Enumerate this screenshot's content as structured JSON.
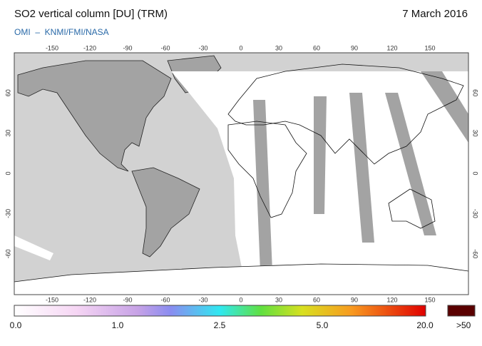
{
  "header": {
    "title": "SO2 vertical column [DU] (TRM)",
    "source": "OMI  –  KNMI/FMI/NASA",
    "date": "7 March 2016"
  },
  "map": {
    "lon_ticks": [
      -150,
      -120,
      -90,
      -60,
      -30,
      0,
      30,
      60,
      90,
      120,
      150
    ],
    "lat_ticks": [
      60,
      30,
      0,
      -30,
      -60
    ]
  },
  "colorbar": {
    "labels": [
      "0.0",
      "1.0",
      "2.5",
      "5.0",
      "20.0"
    ],
    "overflow_label": ">50"
  }
}
